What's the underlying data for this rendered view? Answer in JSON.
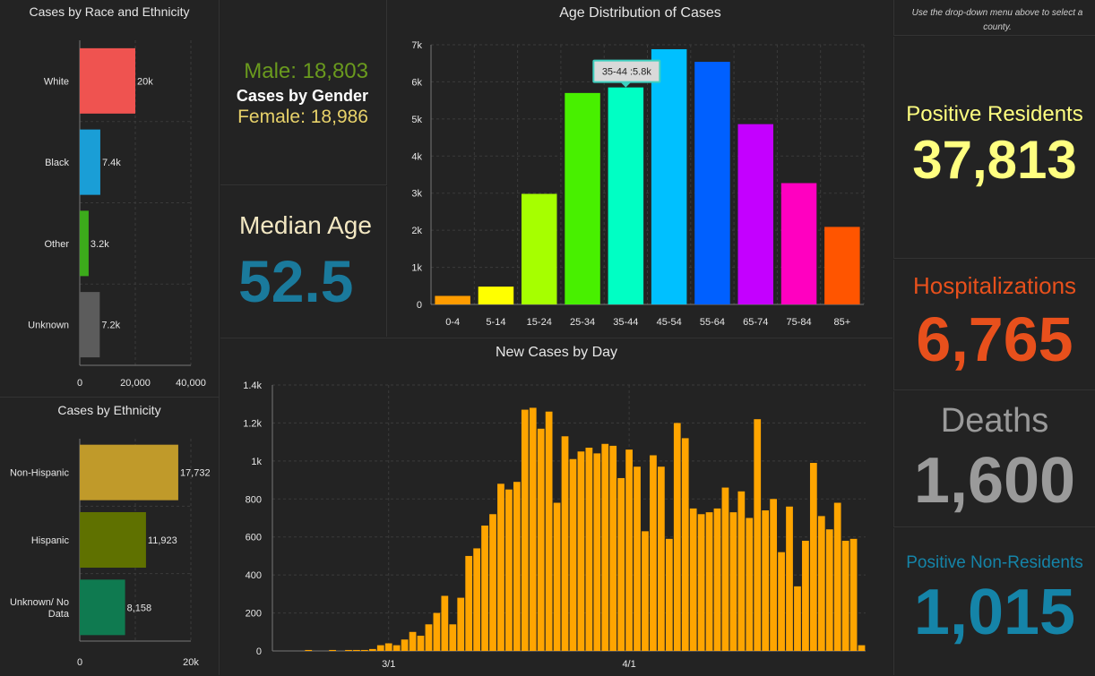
{
  "gender": {
    "male": "Male: 18,803",
    "title": "Cases by Gender",
    "female": "Female: 18,986"
  },
  "median": {
    "label": "Median Age",
    "value": "52.5"
  },
  "side": {
    "hint": "Use the drop-down menu above to select a county.",
    "positive_residents": {
      "label": "Positive Residents",
      "value": "37,813",
      "color": "#ffff80"
    },
    "hospitalizations": {
      "label": "Hospitalizations",
      "value": "6,765",
      "color": "#e8501c"
    },
    "deaths": {
      "label": "Deaths",
      "value": "1,600",
      "color": "#9a9a9a"
    },
    "positive_nonresidents": {
      "label": "Positive Non-Residents",
      "value": "1,015",
      "color": "#1584a8"
    }
  },
  "chart_data": [
    {
      "id": "race",
      "type": "bar",
      "orientation": "horizontal",
      "title": "Cases by Race and Ethnicity",
      "categories": [
        "White",
        "Black",
        "Other",
        "Unknown"
      ],
      "values": [
        20000,
        7400,
        3200,
        7200
      ],
      "data_labels": [
        "20k",
        "7.4k",
        "3.2k",
        "7.2k"
      ],
      "colors": [
        "#ef5350",
        "#1a9ed6",
        "#3cab1b",
        "#5c5c5c"
      ],
      "xlim": [
        0,
        40000
      ],
      "xticks": [
        "0",
        "20,000",
        "40,000"
      ],
      "grid": true
    },
    {
      "id": "ethnicity",
      "type": "bar",
      "orientation": "horizontal",
      "title": "Cases by Ethnicity",
      "categories": [
        "Non-Hispanic",
        "Hispanic",
        "Unknown/ No Data"
      ],
      "values": [
        17732,
        11923,
        8158
      ],
      "data_labels": [
        "17,732",
        "11,923",
        "8,158"
      ],
      "colors": [
        "#c09a2a",
        "#5f7100",
        "#0f7a50"
      ],
      "xlim": [
        0,
        20000
      ],
      "xticks": [
        "0",
        "20k"
      ],
      "grid": true
    },
    {
      "id": "age",
      "type": "bar",
      "title": "Age Distribution of Cases",
      "categories": [
        "0-4",
        "5-14",
        "15-24",
        "25-34",
        "35-44",
        "45-54",
        "55-64",
        "65-74",
        "75-84",
        "85+"
      ],
      "values": [
        230,
        480,
        2980,
        5700,
        5850,
        6880,
        6540,
        4860,
        3270,
        2090
      ],
      "colors": [
        "#ff9c00",
        "#ffff00",
        "#a6ff00",
        "#48f000",
        "#00ffc4",
        "#00c0ff",
        "#0060ff",
        "#c400ff",
        "#ff00c0",
        "#ff5500"
      ],
      "ylim": [
        0,
        7000
      ],
      "yticks": [
        "0",
        "1k",
        "2k",
        "3k",
        "4k",
        "5k",
        "6k",
        "7k"
      ],
      "tooltip": "35-44 :5.8k",
      "grid": true
    },
    {
      "id": "daily",
      "type": "bar",
      "title": "New Cases by Day",
      "color": "#ffa500",
      "ylim": [
        0,
        1400
      ],
      "yticks": [
        "0",
        "200",
        "400",
        "600",
        "800",
        "1k",
        "1.2k",
        "1.4k"
      ],
      "xticks": [
        "3/1",
        "4/1"
      ],
      "xtick_index": [
        14,
        44
      ],
      "values": [
        0,
        0,
        0,
        0,
        5,
        0,
        0,
        5,
        0,
        5,
        5,
        5,
        10,
        30,
        40,
        30,
        60,
        100,
        80,
        140,
        200,
        290,
        140,
        280,
        500,
        540,
        660,
        720,
        880,
        850,
        890,
        1270,
        1280,
        1170,
        1260,
        780,
        1130,
        1010,
        1050,
        1070,
        1040,
        1090,
        1080,
        910,
        1060,
        970,
        630,
        1030,
        970,
        590,
        1200,
        1120,
        750,
        720,
        730,
        750,
        860,
        730,
        840,
        700,
        1220,
        740,
        800,
        520,
        760,
        340,
        580,
        990,
        710,
        640,
        780,
        580,
        590,
        30
      ],
      "grid": true
    }
  ]
}
